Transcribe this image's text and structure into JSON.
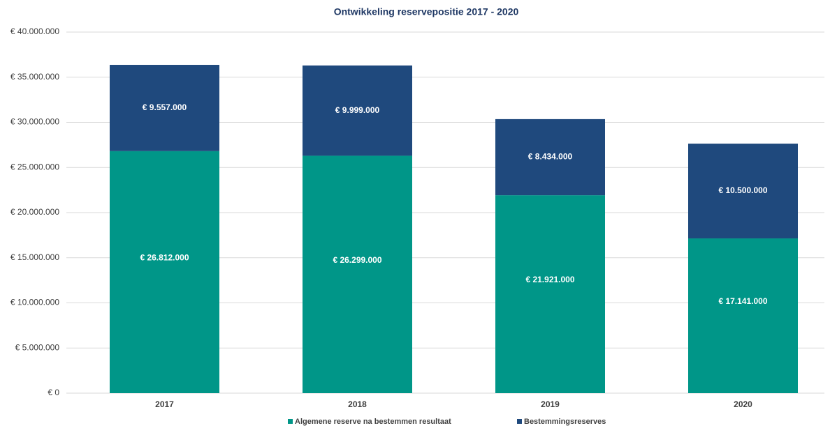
{
  "chart_data": {
    "type": "stacked_bar",
    "title": "Ontwikkeling reservepositie 2017 - 2020",
    "categories": [
      "2017",
      "2018",
      "2019",
      "2020"
    ],
    "series": [
      {
        "name": "Algemene reserve na bestemmen resultaat",
        "color": "#009688",
        "values": [
          26812000,
          26299000,
          21921000,
          17141000
        ],
        "value_labels": [
          "€ 26.812.000",
          "€ 26.299.000",
          "€ 21.921.000",
          "€ 17.141.000"
        ]
      },
      {
        "name": "Bestemmingsreserves",
        "color": "#1f497d",
        "values": [
          9557000,
          9999000,
          8434000,
          10500000
        ],
        "value_labels": [
          "€ 9.557.000",
          "€ 9.999.000",
          "€ 8.434.000",
          "€ 10.500.000"
        ]
      }
    ],
    "ylim": [
      0,
      40000000
    ],
    "yticks": [
      {
        "value": 0,
        "label": "€ 0"
      },
      {
        "value": 5000000,
        "label": "€ 5.000.000"
      },
      {
        "value": 10000000,
        "label": "€ 10.000.000"
      },
      {
        "value": 15000000,
        "label": "€ 15.000.000"
      },
      {
        "value": 20000000,
        "label": "€ 20.000.000"
      },
      {
        "value": 25000000,
        "label": "€ 25.000.000"
      },
      {
        "value": 30000000,
        "label": "€ 30.000.000"
      },
      {
        "value": 35000000,
        "label": "€ 35.000.000"
      },
      {
        "value": 40000000,
        "label": "€ 40.000.000"
      }
    ],
    "grid": true,
    "legend": "bottom"
  }
}
